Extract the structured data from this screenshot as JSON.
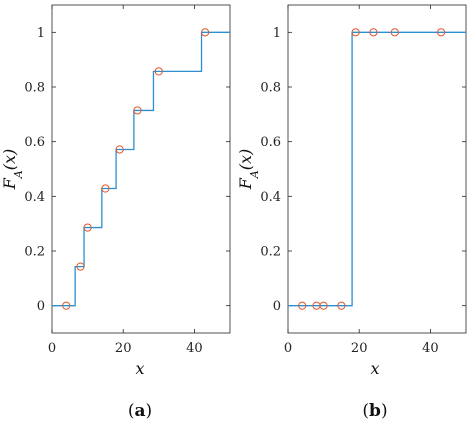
{
  "chart_data": [
    {
      "type": "line",
      "panel_label": "(a)",
      "xlabel": "x",
      "ylabel": "F_A(x)",
      "xlim": [
        0,
        50
      ],
      "ylim": [
        -0.1,
        1.1
      ],
      "xticks": [
        "0",
        "20",
        "40"
      ],
      "yticks": [
        "0",
        "0.2",
        "0.4",
        "0.6",
        "0.8",
        "1"
      ],
      "step_x": [
        0,
        6.5,
        6.5,
        9,
        9,
        14,
        14,
        18,
        18,
        23,
        23,
        28.5,
        28.5,
        42,
        42,
        50
      ],
      "step_y": [
        0,
        0,
        0.1429,
        0.1429,
        0.2857,
        0.2857,
        0.4286,
        0.4286,
        0.5714,
        0.5714,
        0.7143,
        0.7143,
        0.8571,
        0.8571,
        1,
        1
      ],
      "points": [
        {
          "x": 4,
          "y": 0
        },
        {
          "x": 8,
          "y": 0.1429
        },
        {
          "x": 10,
          "y": 0.2857
        },
        {
          "x": 15,
          "y": 0.4286
        },
        {
          "x": 19,
          "y": 0.5714
        },
        {
          "x": 24,
          "y": 0.7143
        },
        {
          "x": 30,
          "y": 0.8571
        },
        {
          "x": 43,
          "y": 1
        }
      ],
      "grid": false
    },
    {
      "type": "line",
      "panel_label": "(b)",
      "xlabel": "x",
      "ylabel": "F_A(x)",
      "xlim": [
        0,
        50
      ],
      "ylim": [
        -0.1,
        1.1
      ],
      "xticks": [
        "0",
        "20",
        "40"
      ],
      "yticks": [
        "0",
        "0.2",
        "0.4",
        "0.6",
        "0.8",
        "1"
      ],
      "step_x": [
        0,
        18,
        18,
        50
      ],
      "step_y": [
        0,
        0,
        1,
        1
      ],
      "points": [
        {
          "x": 4,
          "y": 0
        },
        {
          "x": 8,
          "y": 0
        },
        {
          "x": 10,
          "y": 0
        },
        {
          "x": 15,
          "y": 0
        },
        {
          "x": 19,
          "y": 1
        },
        {
          "x": 24,
          "y": 1
        },
        {
          "x": 30,
          "y": 1
        },
        {
          "x": 43,
          "y": 1
        }
      ],
      "grid": false
    }
  ],
  "colors": {
    "line": "#2b8fd0",
    "marker": "#e0562a",
    "axis": "#262626"
  }
}
